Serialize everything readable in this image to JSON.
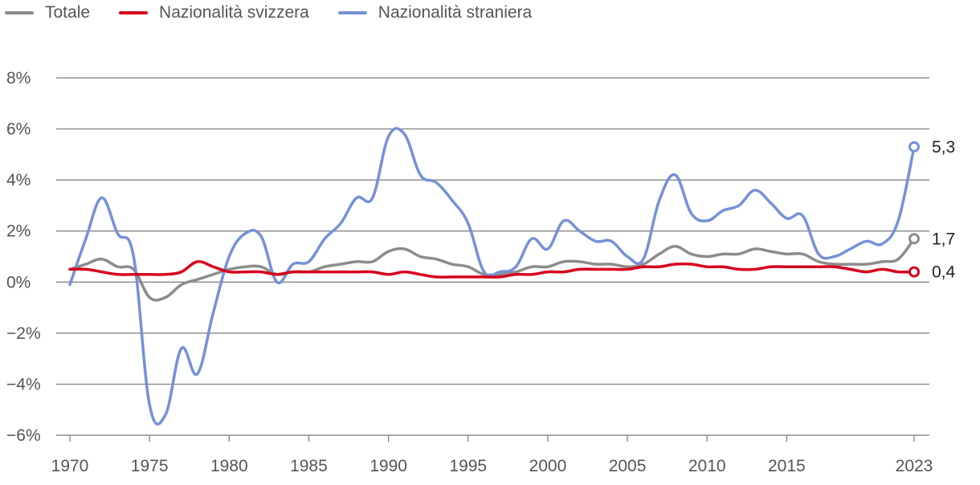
{
  "chart_data": {
    "type": "line",
    "ylim": [
      -6,
      8
    ],
    "xlim": [
      1970,
      2023
    ],
    "y_ticks": [
      "8%",
      "6%",
      "4%",
      "2%",
      "0%",
      "−2%",
      "−4%",
      "−6%"
    ],
    "y_tick_values": [
      8,
      6,
      4,
      2,
      0,
      -2,
      -4,
      -6
    ],
    "x_ticks": [
      "1970",
      "1975",
      "1980",
      "1985",
      "1990",
      "1995",
      "2000",
      "2005",
      "2010",
      "2015",
      "2023"
    ],
    "x_tick_values": [
      1970,
      1975,
      1980,
      1985,
      1990,
      1995,
      2000,
      2005,
      2010,
      2015,
      2023
    ],
    "grid": "horizontal",
    "legend_position": "top-left",
    "x": [
      1970,
      1971,
      1972,
      1973,
      1974,
      1975,
      1976,
      1977,
      1978,
      1979,
      1980,
      1981,
      1982,
      1983,
      1984,
      1985,
      1986,
      1987,
      1988,
      1989,
      1990,
      1991,
      1992,
      1993,
      1994,
      1995,
      1996,
      1997,
      1998,
      1999,
      2000,
      2001,
      2002,
      2003,
      2004,
      2005,
      2006,
      2007,
      2008,
      2009,
      2010,
      2011,
      2012,
      2013,
      2014,
      2015,
      2016,
      2017,
      2018,
      2019,
      2020,
      2021,
      2022,
      2023
    ],
    "series": [
      {
        "name": "Totale",
        "color": "#8c8c8c",
        "end_label": "1,7",
        "values": [
          0.5,
          0.7,
          0.9,
          0.6,
          0.5,
          -0.6,
          -0.6,
          -0.1,
          0.1,
          0.3,
          0.5,
          0.6,
          0.6,
          0.3,
          0.4,
          0.4,
          0.6,
          0.7,
          0.8,
          0.8,
          1.2,
          1.3,
          1.0,
          0.9,
          0.7,
          0.6,
          0.3,
          0.3,
          0.4,
          0.6,
          0.6,
          0.8,
          0.8,
          0.7,
          0.7,
          0.6,
          0.7,
          1.1,
          1.4,
          1.1,
          1.0,
          1.1,
          1.1,
          1.3,
          1.2,
          1.1,
          1.1,
          0.8,
          0.7,
          0.7,
          0.7,
          0.8,
          0.9,
          1.7
        ]
      },
      {
        "name": "Nazionalità svizzera",
        "color": "#d6001c",
        "end_label": "0,4",
        "values": [
          0.5,
          0.5,
          0.4,
          0.3,
          0.3,
          0.3,
          0.3,
          0.4,
          0.8,
          0.6,
          0.4,
          0.4,
          0.4,
          0.3,
          0.4,
          0.4,
          0.4,
          0.4,
          0.4,
          0.4,
          0.3,
          0.4,
          0.3,
          0.2,
          0.2,
          0.2,
          0.2,
          0.2,
          0.3,
          0.3,
          0.4,
          0.4,
          0.5,
          0.5,
          0.5,
          0.5,
          0.6,
          0.6,
          0.7,
          0.7,
          0.6,
          0.6,
          0.5,
          0.5,
          0.6,
          0.6,
          0.6,
          0.6,
          0.6,
          0.5,
          0.4,
          0.5,
          0.4,
          0.4
        ]
      },
      {
        "name": "Nazionalità straniera",
        "color": "#7591d6",
        "end_label": "5,3",
        "values": [
          -0.1,
          1.7,
          3.3,
          1.9,
          1.0,
          -4.8,
          -5.2,
          -2.6,
          -3.6,
          -1.2,
          1.0,
          1.9,
          1.8,
          0.0,
          0.7,
          0.8,
          1.7,
          2.3,
          3.3,
          3.3,
          5.7,
          5.8,
          4.2,
          3.9,
          3.2,
          2.3,
          0.4,
          0.4,
          0.6,
          1.7,
          1.3,
          2.4,
          2.0,
          1.6,
          1.6,
          1.0,
          0.9,
          3.2,
          4.2,
          2.7,
          2.4,
          2.8,
          3.0,
          3.6,
          3.1,
          2.5,
          2.6,
          1.1,
          1.0,
          1.3,
          1.6,
          1.5,
          2.4,
          5.3
        ]
      }
    ]
  }
}
